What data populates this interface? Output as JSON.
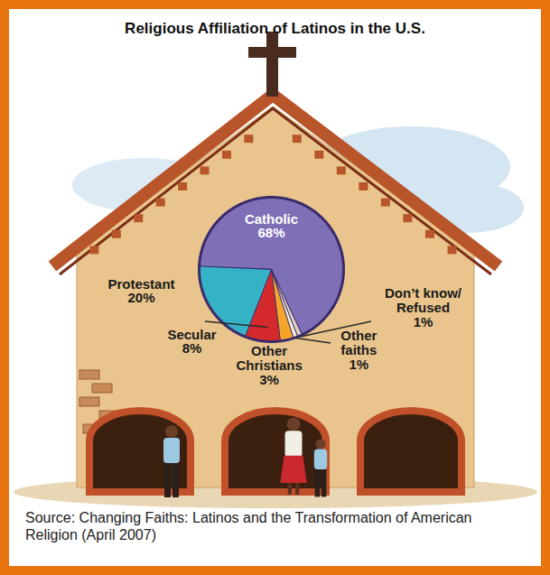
{
  "chart_data": {
    "type": "pie",
    "title": "Religious Affiliation of Latinos in the U.S.",
    "categories": [
      "Catholic",
      "Protestant",
      "Secular",
      "Other Christians",
      "Other faiths",
      "Don’t know/Refused"
    ],
    "values": [
      68,
      20,
      8,
      3,
      1,
      1
    ],
    "value_labels": [
      "68%",
      "20%",
      "8%",
      "3%",
      "1%",
      "1%"
    ],
    "colors": [
      "#7f6fb6",
      "#35b2c6",
      "#d42a2e",
      "#f4a52a",
      "#f3ead6",
      "#d9cfbd"
    ],
    "data_labels": true,
    "source": "Source: Changing Faiths: Latinos and the Transformation of American Religion (April 2007)"
  }
}
